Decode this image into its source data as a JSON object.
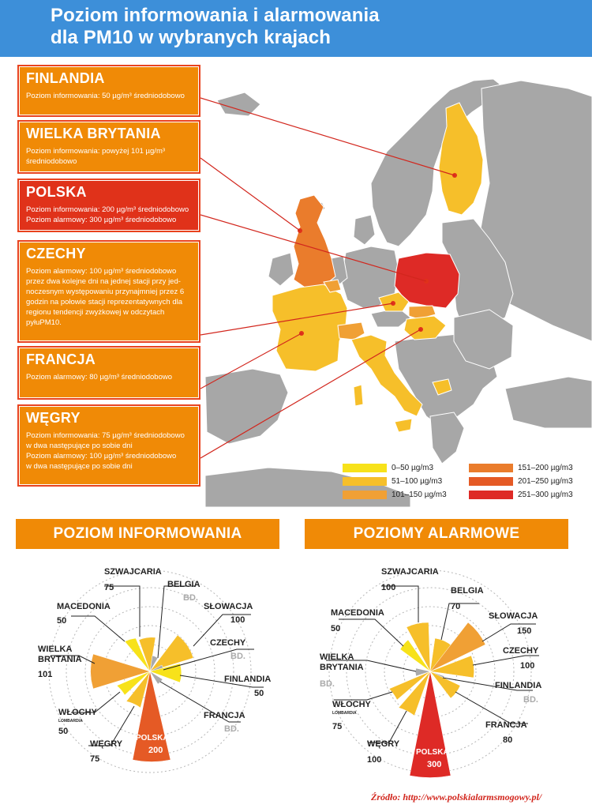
{
  "header": {
    "title_line1": "Poziom informowania i alarmowania",
    "title_line2": "dla PM10 w wybranych krajach"
  },
  "countries": [
    {
      "name": "FINLANDIA",
      "lines": [
        "Poziom informowania: 50 µg/m³ średniodobowo"
      ],
      "color": "#f08a06"
    },
    {
      "name": "WIELKA BRYTANIA",
      "lines": [
        "Poziom informowania: powyżej 101 µg/m³",
        "średniodobowo"
      ],
      "color": "#f08a06"
    },
    {
      "name": "POLSKA",
      "lines": [
        "Poziom informowania: 200 µg/m³ średniodobowo",
        "Poziom alarmowy: 300 µg/m³ średniodobowo"
      ],
      "color": "#e0321a"
    },
    {
      "name": "CZECHY",
      "lines": [
        "Poziom alarmowy: 100 µg/m³ średniodobowo",
        "przez dwa kolejne dni na jednej stacji przy jed-",
        "noczesnym występowaniu przynajmniej przez 6",
        "godzin na połowie stacji reprezentatywnych dla",
        "regionu tendencji zwyżkowej w odczytach",
        "pyłuPM10."
      ],
      "color": "#f08a06"
    },
    {
      "name": "FRANCJA",
      "lines": [
        "Poziom alarmowy: 80 µg/m³ średniodobowo"
      ],
      "color": "#f08a06"
    },
    {
      "name": "WĘGRY",
      "lines": [
        "Poziom informowania: 75 µg/m³ średniodobowo",
        "w dwa następujące po sobie dni",
        "Poziom alarmowy: 100 µg/m³ średniodobowo",
        "w dwa następujące po sobie dni"
      ],
      "color": "#f08a06"
    }
  ],
  "legend": [
    {
      "label": "0–50 µg/m3",
      "color": "#f7e21a"
    },
    {
      "label": "51–100 µg/m3",
      "color": "#f6bf2a"
    },
    {
      "label": "101–150 µg/m3",
      "color": "#f0a035"
    },
    {
      "label": "151–200 µg/m3",
      "color": "#ea7c2c"
    },
    {
      "label": "201–250 µg/m3",
      "color": "#e55a25"
    },
    {
      "label": "251–300 µg/m3",
      "color": "#de2a26"
    }
  ],
  "sections": {
    "left_title": "POZIOM INFORMOWANIA",
    "right_title": "POZIOMY ALARMOWE"
  },
  "rose_left": {
    "items": [
      {
        "name": "SZWAJCARIA",
        "value": "75"
      },
      {
        "name": "BELGIA",
        "value": "BD."
      },
      {
        "name": "SŁOWACJA",
        "value": "100"
      },
      {
        "name": "CZECHY",
        "value": "BD."
      },
      {
        "name": "FINLANDIA",
        "value": "50"
      },
      {
        "name": "FRANCJA",
        "value": "BD."
      },
      {
        "name": "POLSKA",
        "value": "200"
      },
      {
        "name": "WĘGRY",
        "value": "75"
      },
      {
        "name": "WŁOCHY",
        "sub": "LOMBARDIA",
        "value": "50"
      },
      {
        "name": "WIELKA BRYTANIA",
        "value": "101"
      },
      {
        "name": "MACEDONIA",
        "value": "50"
      }
    ]
  },
  "rose_right": {
    "items": [
      {
        "name": "SZWAJCARIA",
        "value": "100"
      },
      {
        "name": "BELGIA",
        "value": "70"
      },
      {
        "name": "SŁOWACJA",
        "value": "150"
      },
      {
        "name": "CZECHY",
        "value": "100"
      },
      {
        "name": "FINLANDIA",
        "value": "BD."
      },
      {
        "name": "FRANCJA",
        "value": "80"
      },
      {
        "name": "POLSKA",
        "value": "300"
      },
      {
        "name": "WĘGRY",
        "value": "100"
      },
      {
        "name": "WŁOCHY",
        "sub": "LOMBARDIA",
        "value": "75"
      },
      {
        "name": "WIELKA BRYTANIA",
        "value": "BD."
      },
      {
        "name": "MACEDONIA",
        "value": "50"
      }
    ]
  },
  "source": "Źródło: http://www.polskialarmsmogowy.pl/"
}
